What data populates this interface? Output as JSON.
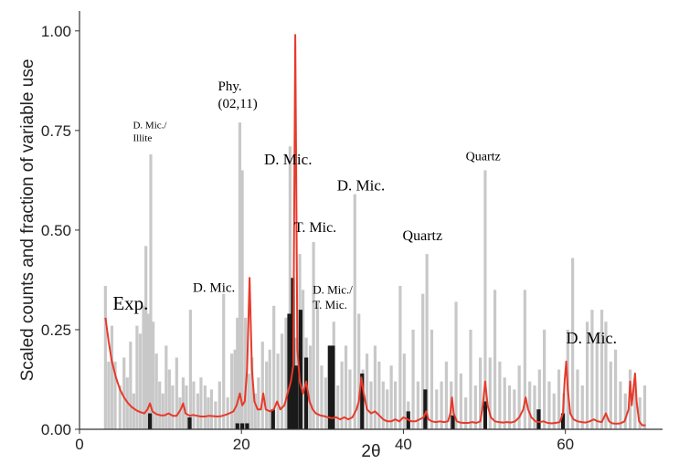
{
  "chart_data": {
    "type": "bar",
    "title": "",
    "xlabel": "2θ",
    "ylabel": "Scaled counts and fraction of variable use",
    "xlim": [
      0,
      72
    ],
    "ylim": [
      0,
      1.05
    ],
    "xticks": [
      {
        "value": 0,
        "label": "0"
      },
      {
        "value": 20,
        "label": "20"
      },
      {
        "value": 40,
        "label": "40"
      },
      {
        "value": 60,
        "label": "60"
      }
    ],
    "yticks": [
      {
        "value": 0,
        "label": "0.00"
      },
      {
        "value": 0.25,
        "label": "0.25"
      },
      {
        "value": 0.5,
        "label": "0.50"
      },
      {
        "value": 0.75,
        "label": "0.75"
      },
      {
        "value": 1,
        "label": "1.00"
      }
    ],
    "colors": {
      "gray": "#c8c8c8",
      "black": "#1a1a1a",
      "red": "#e8392a",
      "axis": "#333333"
    },
    "gray_bars": [
      [
        3.2,
        0.36
      ],
      [
        3.6,
        0.17
      ],
      [
        4.0,
        0.26
      ],
      [
        4.4,
        0.17
      ],
      [
        5.0,
        0.11
      ],
      [
        5.5,
        0.18
      ],
      [
        5.9,
        0.13
      ],
      [
        6.3,
        0.22
      ],
      [
        6.7,
        0.09
      ],
      [
        7.1,
        0.26
      ],
      [
        7.5,
        0.24
      ],
      [
        7.9,
        0.31
      ],
      [
        8.2,
        0.46
      ],
      [
        8.5,
        0.29
      ],
      [
        8.8,
        0.69
      ],
      [
        9.1,
        0.27
      ],
      [
        9.5,
        0.19
      ],
      [
        9.9,
        0.12
      ],
      [
        10.3,
        0.09
      ],
      [
        10.7,
        0.21
      ],
      [
        11.1,
        0.15
      ],
      [
        11.5,
        0.11
      ],
      [
        12.0,
        0.18
      ],
      [
        12.4,
        0.08
      ],
      [
        12.8,
        0.13
      ],
      [
        13.2,
        0.11
      ],
      [
        13.7,
        0.3
      ],
      [
        14.1,
        0.12
      ],
      [
        14.6,
        0.09
      ],
      [
        15.0,
        0.13
      ],
      [
        15.5,
        0.11
      ],
      [
        15.9,
        0.08
      ],
      [
        16.3,
        0.1
      ],
      [
        16.8,
        0.07
      ],
      [
        17.3,
        0.12
      ],
      [
        17.8,
        0.34
      ],
      [
        18.3,
        0.08
      ],
      [
        18.8,
        0.19
      ],
      [
        19.2,
        0.2
      ],
      [
        19.5,
        0.28
      ],
      [
        19.8,
        0.77
      ],
      [
        20.1,
        0.65
      ],
      [
        20.5,
        0.28
      ],
      [
        20.9,
        0.14
      ],
      [
        21.3,
        0.18
      ],
      [
        21.7,
        0.09
      ],
      [
        22.1,
        0.13
      ],
      [
        22.6,
        0.22
      ],
      [
        23.1,
        0.17
      ],
      [
        23.5,
        0.2
      ],
      [
        24.0,
        0.31
      ],
      [
        24.5,
        0.19
      ],
      [
        25.0,
        0.24
      ],
      [
        25.5,
        0.28
      ],
      [
        26.0,
        0.71
      ],
      [
        26.4,
        0.32
      ],
      [
        26.7,
        0.23
      ],
      [
        27.2,
        0.44
      ],
      [
        27.6,
        0.35
      ],
      [
        28.0,
        0.23
      ],
      [
        28.5,
        0.21
      ],
      [
        28.9,
        0.47
      ],
      [
        29.4,
        0.32
      ],
      [
        29.9,
        0.16
      ],
      [
        30.4,
        0.13
      ],
      [
        30.9,
        0.19
      ],
      [
        31.4,
        0.27
      ],
      [
        31.9,
        0.11
      ],
      [
        32.4,
        0.17
      ],
      [
        32.9,
        0.21
      ],
      [
        33.4,
        0.15
      ],
      [
        34.0,
        0.59
      ],
      [
        34.5,
        0.29
      ],
      [
        35.0,
        0.15
      ],
      [
        35.5,
        0.19
      ],
      [
        36.0,
        0.12
      ],
      [
        36.5,
        0.21
      ],
      [
        37.0,
        0.17
      ],
      [
        37.5,
        0.12
      ],
      [
        38.0,
        0.1
      ],
      [
        38.5,
        0.16
      ],
      [
        39.0,
        0.12
      ],
      [
        39.6,
        0.36
      ],
      [
        40.1,
        0.19
      ],
      [
        40.6,
        0.07
      ],
      [
        41.2,
        0.25
      ],
      [
        41.8,
        0.12
      ],
      [
        42.4,
        0.34
      ],
      [
        42.9,
        0.44
      ],
      [
        43.5,
        0.25
      ],
      [
        44.1,
        0.1
      ],
      [
        44.7,
        0.12
      ],
      [
        45.3,
        0.17
      ],
      [
        45.9,
        0.12
      ],
      [
        46.5,
        0.32
      ],
      [
        47.1,
        0.14
      ],
      [
        47.7,
        0.08
      ],
      [
        48.3,
        0.25
      ],
      [
        48.9,
        0.11
      ],
      [
        49.5,
        0.18
      ],
      [
        50.1,
        0.65
      ],
      [
        50.7,
        0.18
      ],
      [
        51.3,
        0.35
      ],
      [
        51.9,
        0.17
      ],
      [
        52.5,
        0.13
      ],
      [
        53.1,
        0.11
      ],
      [
        53.7,
        0.1
      ],
      [
        54.3,
        0.16
      ],
      [
        55.0,
        0.35
      ],
      [
        55.6,
        0.12
      ],
      [
        56.2,
        0.11
      ],
      [
        56.8,
        0.15
      ],
      [
        57.4,
        0.25
      ],
      [
        58.0,
        0.12
      ],
      [
        58.6,
        0.09
      ],
      [
        59.2,
        0.15
      ],
      [
        59.8,
        0.09
      ],
      [
        60.3,
        0.25
      ],
      [
        60.9,
        0.43
      ],
      [
        61.5,
        0.15
      ],
      [
        62.1,
        0.11
      ],
      [
        62.7,
        0.27
      ],
      [
        63.3,
        0.3
      ],
      [
        63.9,
        0.24
      ],
      [
        64.5,
        0.3
      ],
      [
        65.0,
        0.27
      ],
      [
        65.6,
        0.17
      ],
      [
        66.2,
        0.2
      ],
      [
        66.8,
        0.12
      ],
      [
        67.4,
        0.09
      ],
      [
        68.0,
        0.15
      ],
      [
        68.6,
        0.12
      ],
      [
        69.2,
        0.08
      ],
      [
        69.8,
        0.11
      ]
    ],
    "black_bars": [
      [
        8.7,
        0.04
      ],
      [
        13.6,
        0.03
      ],
      [
        19.5,
        0.015
      ],
      [
        20.1,
        0.015
      ],
      [
        20.7,
        0.015
      ],
      [
        23.9,
        0.05
      ],
      [
        25.9,
        0.29
      ],
      [
        26.35,
        0.38
      ],
      [
        26.8,
        0.16
      ],
      [
        27.3,
        0.3
      ],
      [
        28.0,
        0.18
      ],
      [
        30.9,
        0.21
      ],
      [
        31.3,
        0.21
      ],
      [
        34.9,
        0.14
      ],
      [
        40.6,
        0.045
      ],
      [
        42.7,
        0.1
      ],
      [
        46.1,
        0.035
      ],
      [
        50.1,
        0.07
      ],
      [
        56.7,
        0.05
      ],
      [
        59.7,
        0.04
      ]
    ],
    "red_curve": [
      [
        3.2,
        0.28
      ],
      [
        3.6,
        0.22
      ],
      [
        4.0,
        0.17
      ],
      [
        4.5,
        0.13
      ],
      [
        5.0,
        0.1
      ],
      [
        5.5,
        0.08
      ],
      [
        6.0,
        0.065
      ],
      [
        6.5,
        0.055
      ],
      [
        7.0,
        0.048
      ],
      [
        7.5,
        0.043
      ],
      [
        8.0,
        0.04
      ],
      [
        8.4,
        0.05
      ],
      [
        8.7,
        0.065
      ],
      [
        9.0,
        0.045
      ],
      [
        9.5,
        0.038
      ],
      [
        10.0,
        0.035
      ],
      [
        10.5,
        0.035
      ],
      [
        11.0,
        0.04
      ],
      [
        11.5,
        0.034
      ],
      [
        12.0,
        0.034
      ],
      [
        12.5,
        0.05
      ],
      [
        12.8,
        0.065
      ],
      [
        13.1,
        0.04
      ],
      [
        13.6,
        0.034
      ],
      [
        14.0,
        0.036
      ],
      [
        14.5,
        0.034
      ],
      [
        15.0,
        0.032
      ],
      [
        15.5,
        0.032
      ],
      [
        16.0,
        0.034
      ],
      [
        16.5,
        0.033
      ],
      [
        17.0,
        0.032
      ],
      [
        17.5,
        0.033
      ],
      [
        18.0,
        0.036
      ],
      [
        18.5,
        0.04
      ],
      [
        19.0,
        0.045
      ],
      [
        19.4,
        0.06
      ],
      [
        19.8,
        0.09
      ],
      [
        20.1,
        0.06
      ],
      [
        20.4,
        0.07
      ],
      [
        20.7,
        0.15
      ],
      [
        21.0,
        0.38
      ],
      [
        21.3,
        0.15
      ],
      [
        21.6,
        0.07
      ],
      [
        22.0,
        0.05
      ],
      [
        22.4,
        0.05
      ],
      [
        22.7,
        0.09
      ],
      [
        23.0,
        0.05
      ],
      [
        23.5,
        0.045
      ],
      [
        24.0,
        0.05
      ],
      [
        24.4,
        0.07
      ],
      [
        24.8,
        0.05
      ],
      [
        25.3,
        0.06
      ],
      [
        25.7,
        0.09
      ],
      [
        26.1,
        0.12
      ],
      [
        26.4,
        0.16
      ],
      [
        26.65,
        0.99
      ],
      [
        26.9,
        0.2
      ],
      [
        27.2,
        0.12
      ],
      [
        27.6,
        0.09
      ],
      [
        28.0,
        0.12
      ],
      [
        28.4,
        0.07
      ],
      [
        28.8,
        0.05
      ],
      [
        29.2,
        0.04
      ],
      [
        29.7,
        0.035
      ],
      [
        30.2,
        0.033
      ],
      [
        30.7,
        0.03
      ],
      [
        31.2,
        0.028
      ],
      [
        31.7,
        0.03
      ],
      [
        32.2,
        0.025
      ],
      [
        32.7,
        0.03
      ],
      [
        33.2,
        0.025
      ],
      [
        33.7,
        0.03
      ],
      [
        34.2,
        0.05
      ],
      [
        34.5,
        0.07
      ],
      [
        34.8,
        0.13
      ],
      [
        35.1,
        0.09
      ],
      [
        35.5,
        0.05
      ],
      [
        36.0,
        0.04
      ],
      [
        36.5,
        0.045
      ],
      [
        37.0,
        0.035
      ],
      [
        37.5,
        0.025
      ],
      [
        38.0,
        0.02
      ],
      [
        38.5,
        0.02
      ],
      [
        39.0,
        0.025
      ],
      [
        39.5,
        0.02
      ],
      [
        40.0,
        0.03
      ],
      [
        40.5,
        0.025
      ],
      [
        41.0,
        0.02
      ],
      [
        41.5,
        0.02
      ],
      [
        42.0,
        0.025
      ],
      [
        42.5,
        0.03
      ],
      [
        42.8,
        0.045
      ],
      [
        43.1,
        0.025
      ],
      [
        43.5,
        0.02
      ],
      [
        44.0,
        0.018
      ],
      [
        44.5,
        0.02
      ],
      [
        45.0,
        0.018
      ],
      [
        45.5,
        0.02
      ],
      [
        45.8,
        0.04
      ],
      [
        46.0,
        0.08
      ],
      [
        46.2,
        0.04
      ],
      [
        46.6,
        0.02
      ],
      [
        47.0,
        0.017
      ],
      [
        47.5,
        0.016
      ],
      [
        48.0,
        0.016
      ],
      [
        48.5,
        0.018
      ],
      [
        49.0,
        0.016
      ],
      [
        49.5,
        0.02
      ],
      [
        49.8,
        0.06
      ],
      [
        50.1,
        0.12
      ],
      [
        50.4,
        0.06
      ],
      [
        50.8,
        0.03
      ],
      [
        51.3,
        0.02
      ],
      [
        51.8,
        0.018
      ],
      [
        52.3,
        0.017
      ],
      [
        52.8,
        0.018
      ],
      [
        53.3,
        0.017
      ],
      [
        53.8,
        0.02
      ],
      [
        54.3,
        0.03
      ],
      [
        54.8,
        0.05
      ],
      [
        55.1,
        0.08
      ],
      [
        55.4,
        0.05
      ],
      [
        55.8,
        0.03
      ],
      [
        56.3,
        0.02
      ],
      [
        56.8,
        0.018
      ],
      [
        57.3,
        0.02
      ],
      [
        57.8,
        0.016
      ],
      [
        58.3,
        0.015
      ],
      [
        58.8,
        0.016
      ],
      [
        59.3,
        0.018
      ],
      [
        59.7,
        0.04
      ],
      [
        59.9,
        0.12
      ],
      [
        60.1,
        0.17
      ],
      [
        60.3,
        0.1
      ],
      [
        60.6,
        0.04
      ],
      [
        61.0,
        0.025
      ],
      [
        61.5,
        0.02
      ],
      [
        62.0,
        0.018
      ],
      [
        62.5,
        0.017
      ],
      [
        63.0,
        0.02
      ],
      [
        63.5,
        0.025
      ],
      [
        64.0,
        0.02
      ],
      [
        64.5,
        0.018
      ],
      [
        65.0,
        0.04
      ],
      [
        65.4,
        0.02
      ],
      [
        65.8,
        0.015
      ],
      [
        66.3,
        0.014
      ],
      [
        66.8,
        0.015
      ],
      [
        67.3,
        0.02
      ],
      [
        67.8,
        0.05
      ],
      [
        68.0,
        0.12
      ],
      [
        68.2,
        0.06
      ],
      [
        68.4,
        0.1
      ],
      [
        68.6,
        0.14
      ],
      [
        68.8,
        0.07
      ],
      [
        69.1,
        0.02
      ],
      [
        69.5,
        0.01
      ],
      [
        69.9,
        0.01
      ]
    ],
    "annotations": [
      {
        "lines": [
          "Exp."
        ],
        "x": 4.1,
        "y": 0.3,
        "size": 21
      },
      {
        "lines": [
          "D. Mic./",
          "Illite"
        ],
        "x": 6.6,
        "y": 0.755,
        "size": 11
      },
      {
        "lines": [
          "Phy.",
          "(02,11)"
        ],
        "x": 17.1,
        "y": 0.85,
        "size": 15
      },
      {
        "lines": [
          "D. Mic."
        ],
        "x": 22.8,
        "y": 0.665,
        "size": 17
      },
      {
        "lines": [
          "T. Mic."
        ],
        "x": 26.5,
        "y": 0.495,
        "size": 16
      },
      {
        "lines": [
          "D. Mic."
        ],
        "x": 31.8,
        "y": 0.6,
        "size": 17
      },
      {
        "lines": [
          "Quartz"
        ],
        "x": 39.9,
        "y": 0.475,
        "size": 16
      },
      {
        "lines": [
          "Quartz"
        ],
        "x": 47.7,
        "y": 0.675,
        "size": 14
      },
      {
        "lines": [
          "D. Mic."
        ],
        "x": 14.0,
        "y": 0.345,
        "size": 15
      },
      {
        "lines": [
          "D. Mic./",
          "T. Mic."
        ],
        "x": 28.8,
        "y": 0.34,
        "size": 13
      },
      {
        "lines": [
          "D. Mic."
        ],
        "x": 60.1,
        "y": 0.215,
        "size": 18
      }
    ]
  }
}
